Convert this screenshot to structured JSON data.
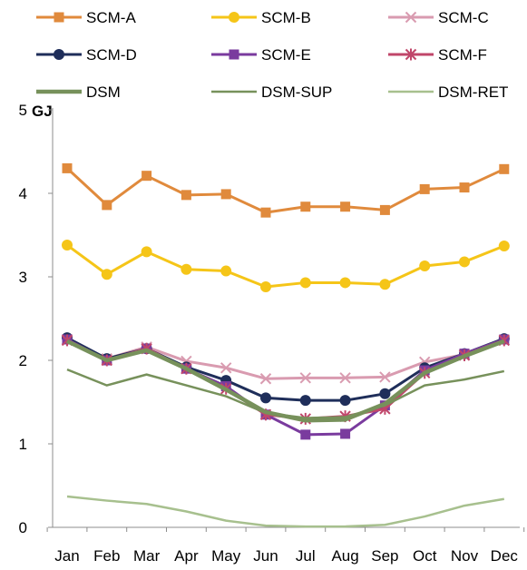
{
  "chart_data": {
    "type": "line",
    "ylabel": "GJ",
    "ylim": [
      0,
      5
    ],
    "yticks": [
      0,
      1,
      2,
      3,
      4,
      5
    ],
    "grid": false,
    "legend_position": "top",
    "categories": [
      "Jan",
      "Feb",
      "Mar",
      "Apr",
      "May",
      "Jun",
      "Jul",
      "Aug",
      "Sep",
      "Oct",
      "Nov",
      "Dec"
    ],
    "series": [
      {
        "name": "SCM-A",
        "color": "#E08A3C",
        "marker": "square",
        "values": [
          4.3,
          3.86,
          4.21,
          3.98,
          3.99,
          3.77,
          3.84,
          3.84,
          3.8,
          4.05,
          4.07,
          4.29
        ]
      },
      {
        "name": "SCM-B",
        "color": "#F5C518",
        "marker": "circle",
        "values": [
          3.38,
          3.03,
          3.3,
          3.09,
          3.07,
          2.88,
          2.93,
          2.93,
          2.91,
          3.13,
          3.18,
          3.37
        ]
      },
      {
        "name": "SCM-C",
        "color": "#D99BB0",
        "marker": "x",
        "values": [
          2.25,
          2.02,
          2.16,
          1.99,
          1.91,
          1.78,
          1.79,
          1.79,
          1.8,
          1.98,
          2.07,
          2.24
        ]
      },
      {
        "name": "SCM-D",
        "color": "#1F2E5A",
        "marker": "circle",
        "values": [
          2.27,
          2.02,
          2.14,
          1.92,
          1.76,
          1.55,
          1.52,
          1.52,
          1.6,
          1.91,
          2.08,
          2.26
        ]
      },
      {
        "name": "SCM-E",
        "color": "#7A3B9E",
        "marker": "square",
        "values": [
          2.25,
          2.0,
          2.14,
          1.9,
          1.69,
          1.35,
          1.11,
          1.12,
          1.46,
          1.88,
          2.08,
          2.25
        ]
      },
      {
        "name": "SCM-F",
        "color": "#C0466A",
        "marker": "asterisk",
        "values": [
          2.24,
          2.0,
          2.14,
          1.9,
          1.66,
          1.35,
          1.3,
          1.33,
          1.42,
          1.85,
          2.06,
          2.24
        ]
      },
      {
        "name": "DSM",
        "color": "#77915B",
        "marker": "none",
        "values": [
          2.23,
          2.0,
          2.12,
          1.9,
          1.65,
          1.38,
          1.28,
          1.29,
          1.48,
          1.85,
          2.05,
          2.23
        ]
      },
      {
        "name": "DSM-SUP",
        "color": "#77915B",
        "marker": "none",
        "values": [
          1.89,
          1.7,
          1.83,
          1.7,
          1.57,
          1.37,
          1.31,
          1.32,
          1.46,
          1.7,
          1.77,
          1.87
        ]
      },
      {
        "name": "DSM-RET",
        "color": "#A7C08E",
        "marker": "none",
        "values": [
          0.37,
          0.32,
          0.28,
          0.19,
          0.08,
          0.02,
          0.01,
          0.01,
          0.03,
          0.13,
          0.26,
          0.34
        ]
      }
    ]
  }
}
